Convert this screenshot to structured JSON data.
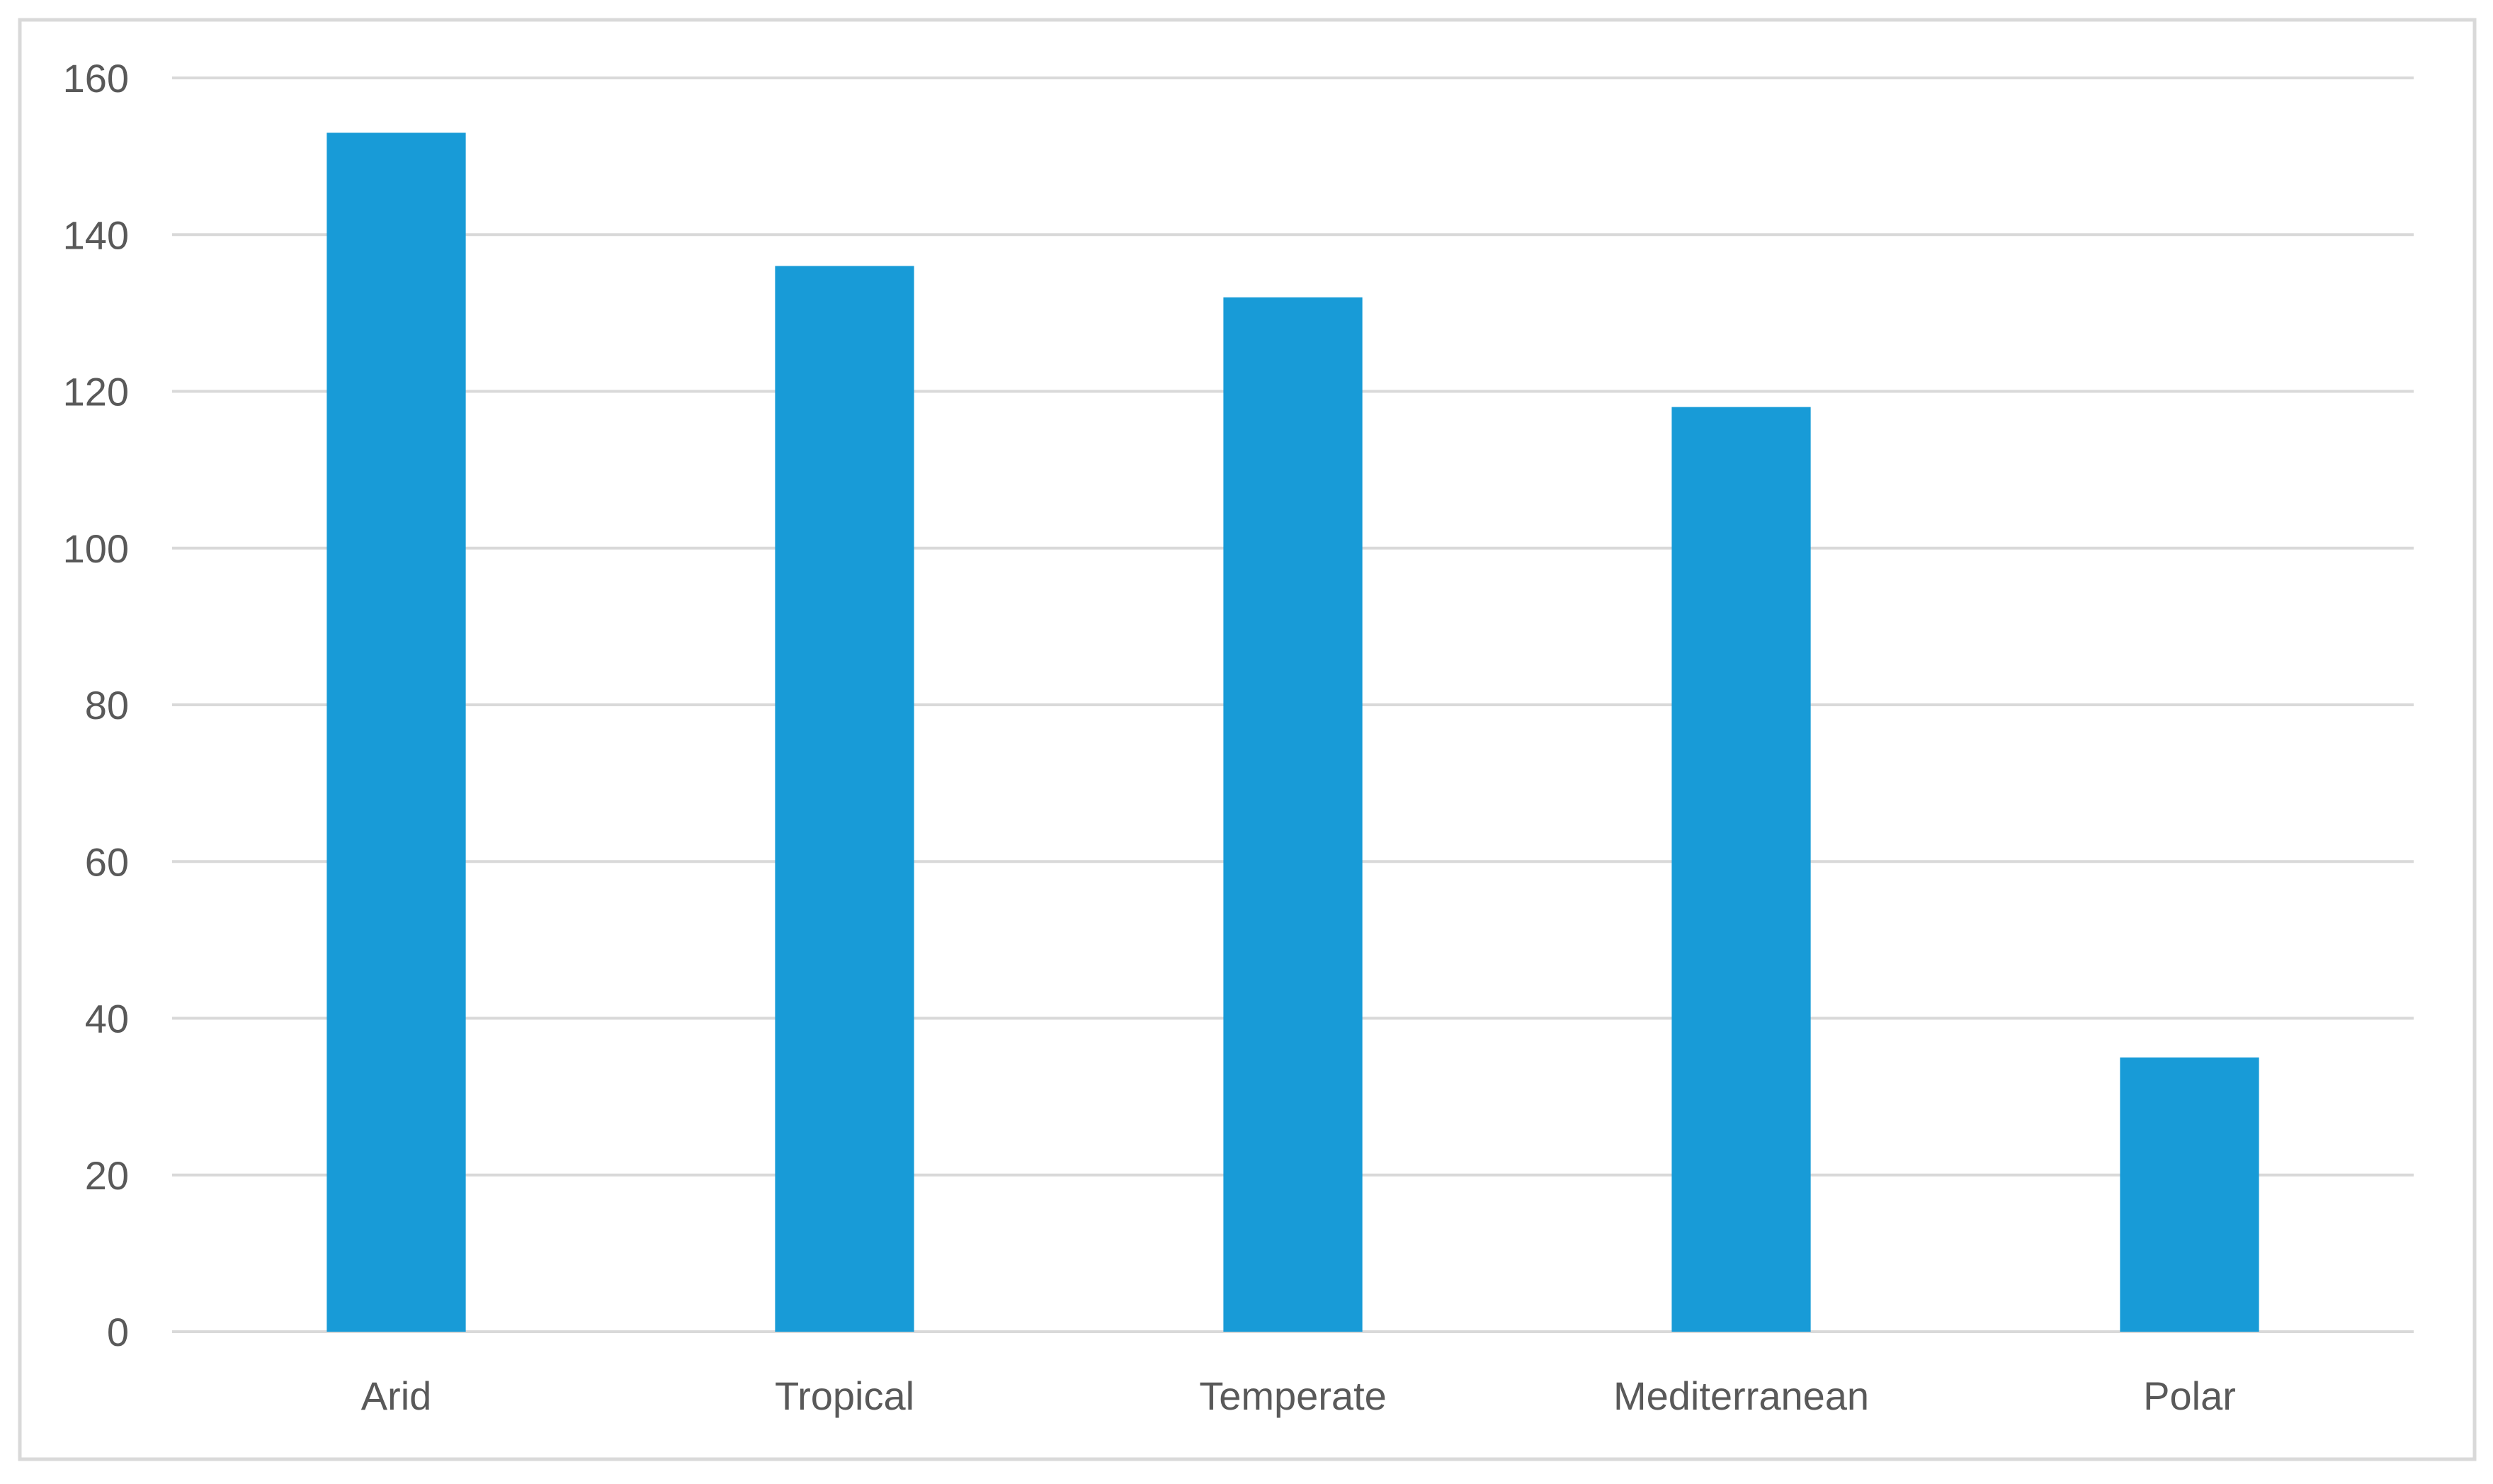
{
  "chart_data": {
    "type": "bar",
    "title": "",
    "xlabel": "",
    "ylabel": "",
    "categories": [
      "Arid",
      "Tropical",
      "Temperate",
      "Mediterranean",
      "Polar"
    ],
    "values": [
      153,
      136,
      132,
      118,
      35
    ],
    "ylim": [
      0,
      160
    ],
    "yticks": [
      "0",
      "20",
      "40",
      "60",
      "80",
      "100",
      "120",
      "140",
      "160"
    ],
    "grid": true,
    "legend": "none",
    "bar_color": "#189bd7",
    "grid_color": "#d9d9d9",
    "tick_label_color": "#595959",
    "border_color": "#d9d9d9"
  }
}
